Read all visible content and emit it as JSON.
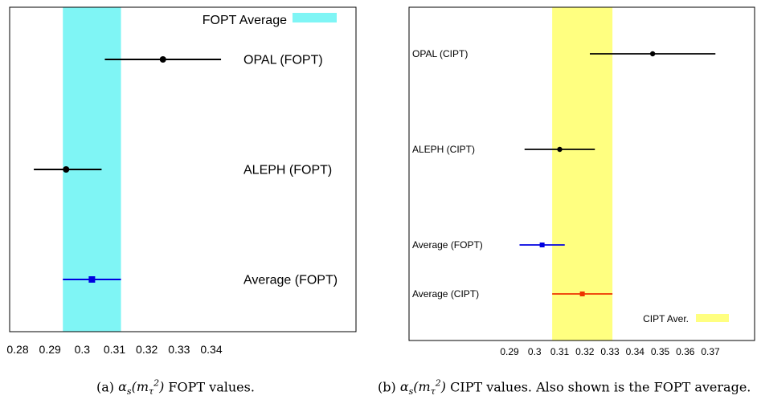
{
  "charts": [
    {
      "id": "fopt",
      "type": "scatter",
      "band_color": "#7ff5f5",
      "legend": {
        "label": "FOPT Average"
      },
      "ticks": [
        "0.28",
        "0.29",
        "0.3",
        "0.31",
        "0.32",
        "0.33",
        "0.34"
      ],
      "points": [
        {
          "label": "OPAL (FOPT)",
          "value": 0.325,
          "lo": 0.307,
          "hi": 0.343,
          "color": "#000000",
          "marker": "circle"
        },
        {
          "label": "ALEPH (FOPT)",
          "value": 0.295,
          "lo": 0.285,
          "hi": 0.306,
          "color": "#000000",
          "marker": "circle"
        },
        {
          "label": "Average (FOPT)",
          "value": 0.303,
          "lo": 0.294,
          "hi": 0.312,
          "color": "#0000e0",
          "marker": "square"
        }
      ]
    },
    {
      "id": "cipt",
      "type": "scatter",
      "band_color": "#ffff80",
      "legend": {
        "label": "CIPT Aver."
      },
      "ticks": [
        "0.29",
        "0.3",
        "0.31",
        "0.32",
        "0.33",
        "0.34",
        "0.35",
        "0.36",
        "0.37"
      ],
      "points": [
        {
          "label": "OPAL (CIPT)",
          "value": 0.347,
          "lo": 0.322,
          "hi": 0.372,
          "color": "#000000",
          "marker": "circle"
        },
        {
          "label": "ALEPH (CIPT)",
          "value": 0.31,
          "lo": 0.296,
          "hi": 0.324,
          "color": "#000000",
          "marker": "circle"
        },
        {
          "label": "Average (FOPT)",
          "value": 0.303,
          "lo": 0.294,
          "hi": 0.312,
          "color": "#0000e0",
          "marker": "square"
        },
        {
          "label": "Average (CIPT)",
          "value": 0.319,
          "lo": 0.307,
          "hi": 0.331,
          "color": "#ee3300",
          "marker": "square"
        }
      ]
    }
  ],
  "chart_data": [
    {
      "type": "scatter",
      "band": {
        "lo": 0.294,
        "hi": 0.312,
        "label": "FOPT Average"
      },
      "x_ticks": [
        "0.28",
        "0.29",
        "0.3",
        "0.31",
        "0.32",
        "0.33",
        "0.34"
      ],
      "points": [
        {
          "label": "OPAL (FOPT)",
          "value": 0.325,
          "lo": 0.307,
          "hi": 0.343
        },
        {
          "label": "ALEPH (FOPT)",
          "value": 0.295,
          "lo": 0.285,
          "hi": 0.306
        },
        {
          "label": "Average (FOPT)",
          "value": 0.303,
          "lo": 0.294,
          "hi": 0.312
        }
      ]
    },
    {
      "type": "scatter",
      "band": {
        "lo": 0.307,
        "hi": 0.331,
        "label": "CIPT Aver."
      },
      "x_ticks": [
        "0.29",
        "0.3",
        "0.31",
        "0.32",
        "0.33",
        "0.34",
        "0.35",
        "0.36",
        "0.37"
      ],
      "points": [
        {
          "label": "OPAL (CIPT)",
          "value": 0.347,
          "lo": 0.322,
          "hi": 0.372
        },
        {
          "label": "ALEPH (CIPT)",
          "value": 0.31,
          "lo": 0.296,
          "hi": 0.324
        },
        {
          "label": "Average (FOPT)",
          "value": 0.303,
          "lo": 0.294,
          "hi": 0.312
        },
        {
          "label": "Average (CIPT)",
          "value": 0.319,
          "lo": 0.307,
          "hi": 0.331
        }
      ]
    }
  ],
  "captions": {
    "a_prefix": "(a) ",
    "a_suffix": " FOPT values.",
    "b_prefix": "(b) ",
    "b_suffix": " CIPT values. Also shown is the FOPT average."
  }
}
